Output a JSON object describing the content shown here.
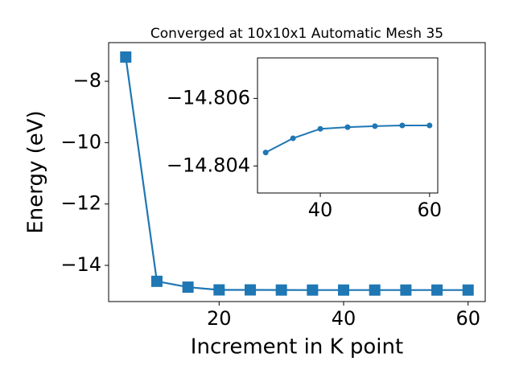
{
  "chart_data": [
    {
      "type": "line",
      "title": "Converged at 10x10x1 Automatic Mesh 35",
      "x_label": "Increment in K point",
      "y_label": "Energy (eV)",
      "x": [
        5,
        10,
        15,
        20,
        25,
        30,
        35,
        40,
        45,
        50,
        55,
        60
      ],
      "series": [
        {
          "color": "#1f77b4",
          "marker": "square",
          "values": [
            -7.21,
            -14.52,
            -14.71,
            -14.8,
            -14.8,
            -14.804,
            -14.8048,
            -14.805,
            -14.805,
            -14.805,
            -14.805,
            -14.805
          ]
        }
      ],
      "xlim": [
        2.25,
        62.75
      ],
      "ylim": [
        -15.18,
        -6.74
      ],
      "xticks": [
        20,
        40,
        60
      ],
      "yticks": [
        {
          "value": -8,
          "label": "−8"
        },
        {
          "value": -10,
          "label": "−10"
        },
        {
          "value": -12,
          "label": "−12"
        },
        {
          "value": -14,
          "label": "−14"
        }
      ]
    },
    {
      "type": "line",
      "x": [
        30,
        35,
        40,
        45,
        50,
        55,
        60
      ],
      "series": [
        {
          "color": "#1f77b4",
          "marker": "circle",
          "values": [
            -14.8044,
            -14.80482,
            -14.8051,
            -14.80515,
            -14.80518,
            -14.8052,
            -14.8052
          ]
        }
      ],
      "xlim": [
        28.5,
        61.5
      ],
      "ylim": [
        -14.8032,
        -14.8072
      ],
      "xticks": [
        40,
        60
      ],
      "yticks": [
        {
          "value": -14.806,
          "label": "−14.806"
        },
        {
          "value": -14.804,
          "label": "−14.804"
        }
      ]
    }
  ]
}
